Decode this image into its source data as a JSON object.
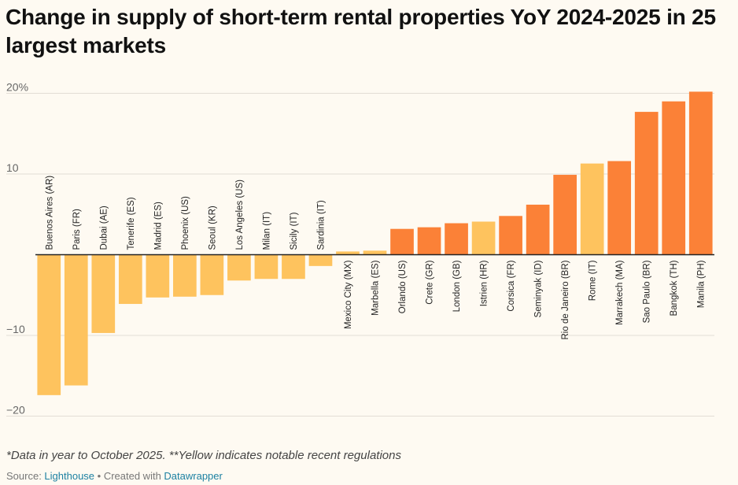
{
  "title": "Change in supply of short-term rental properties YoY 2024-2025 in 25 largest markets",
  "footnote": "*Data in year to October 2025. **Yellow indicates notable recent regulations",
  "source": {
    "prefix": "Source: ",
    "source_link": "Lighthouse",
    "separator": " • Created with ",
    "tool_link": "Datawrapper"
  },
  "colors": {
    "regulated": "#fec35e",
    "other": "#fb8137",
    "background": "#fefaf2",
    "grid": "#e2ddd5"
  },
  "chart_data": {
    "type": "bar",
    "title": "Change in supply of short-term rental properties YoY 2024-2025 in 25 largest markets",
    "xlabel": "",
    "ylabel": "",
    "ylim": [
      -20,
      20
    ],
    "ticks": [
      {
        "value": 20,
        "label": "20%"
      },
      {
        "value": 10,
        "label": "10"
      },
      {
        "value": -10,
        "label": "−10"
      },
      {
        "value": -20,
        "label": "−20"
      }
    ],
    "grid": true,
    "categories": [
      "Buenos Aires (AR)",
      "Paris (FR)",
      "Dubai (AE)",
      "Tenerife (ES)",
      "Madrid (ES)",
      "Phoenix (US)",
      "Seoul (KR)",
      "Los Angeles (US)",
      "Milan (IT)",
      "Sicily (IT)",
      "Sardinia (IT)",
      "Mexico City (MX)",
      "Marbella (ES)",
      "Orlando (US)",
      "Crete (GR)",
      "London (GB)",
      "Istrien (HR)",
      "Corsica (FR)",
      "Seminyak (ID)",
      "Rio de Janeiro (BR)",
      "Rome (IT)",
      "Marrakech (MA)",
      "Sao Paulo (BR)",
      "Bangkok (TH)",
      "Manila (PH)"
    ],
    "values": [
      -17.4,
      -16.2,
      -9.7,
      -6.1,
      -5.3,
      -5.2,
      -5.0,
      -3.2,
      -3.0,
      -3.0,
      -1.4,
      0.4,
      0.5,
      3.2,
      3.4,
      3.9,
      4.1,
      4.8,
      6.2,
      9.9,
      11.3,
      11.6,
      17.7,
      19.0,
      20.2
    ],
    "regulated": [
      true,
      true,
      true,
      true,
      true,
      true,
      true,
      true,
      true,
      true,
      true,
      true,
      true,
      false,
      false,
      false,
      true,
      false,
      false,
      false,
      true,
      false,
      false,
      false,
      false
    ]
  }
}
